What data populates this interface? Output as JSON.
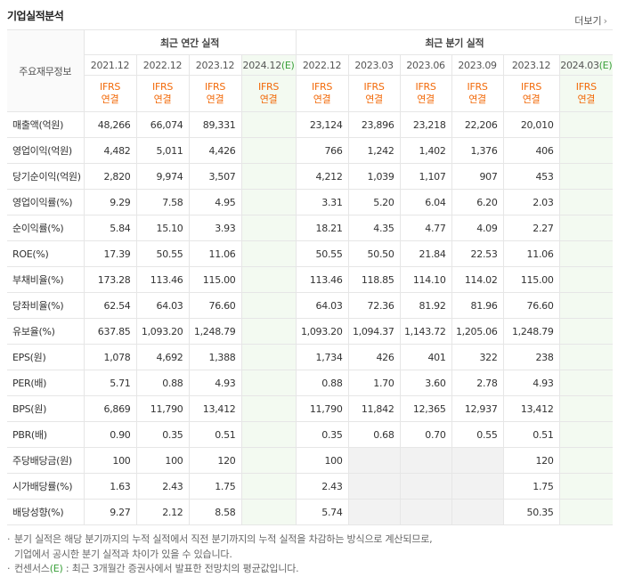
{
  "header": {
    "title": "기업실적분석",
    "more": "더보기"
  },
  "table": {
    "row_header": "주요재무정보",
    "column_groups": [
      {
        "title": "최근 연간 실적",
        "span": 4
      },
      {
        "title": "최근 분기 실적",
        "span": 6
      }
    ],
    "columns": [
      {
        "date": "2021.12",
        "standard": "IFRS",
        "scope": "연결"
      },
      {
        "date": "2022.12",
        "standard": "IFRS",
        "scope": "연결"
      },
      {
        "date": "2023.12",
        "standard": "IFRS",
        "scope": "연결"
      },
      {
        "date": "2024.12",
        "suffix": "(E)",
        "standard": "IFRS",
        "scope": "연결"
      },
      {
        "date": "2022.12",
        "standard": "IFRS",
        "scope": "연결"
      },
      {
        "date": "2023.03",
        "standard": "IFRS",
        "scope": "연결"
      },
      {
        "date": "2023.06",
        "standard": "IFRS",
        "scope": "연결"
      },
      {
        "date": "2023.09",
        "standard": "IFRS",
        "scope": "연결"
      },
      {
        "date": "2023.12",
        "standard": "IFRS",
        "scope": "연결"
      },
      {
        "date": "2024.03",
        "suffix": "(E)",
        "standard": "IFRS",
        "scope": "연결"
      }
    ],
    "groups": [
      {
        "rows": [
          {
            "label": "매출액(억원)",
            "values": [
              "48,266",
              "66,074",
              "89,331",
              null,
              "23,124",
              "23,896",
              "23,218",
              "22,206",
              "20,010",
              null
            ]
          },
          {
            "label": "영업이익(억원)",
            "values": [
              "4,482",
              "5,011",
              "4,426",
              null,
              "766",
              "1,242",
              "1,402",
              "1,376",
              "406",
              null
            ]
          },
          {
            "label": "당기순이익(억원)",
            "values": [
              "2,820",
              "9,974",
              "3,507",
              null,
              "4,212",
              "1,039",
              "1,107",
              "907",
              "453",
              null
            ]
          }
        ]
      },
      {
        "rows": [
          {
            "label": "영업이익률(%)",
            "values": [
              "9.29",
              "7.58",
              "4.95",
              null,
              "3.31",
              "5.20",
              "6.04",
              "6.20",
              "2.03",
              null
            ]
          },
          {
            "label": "순이익률(%)",
            "values": [
              "5.84",
              "15.10",
              "3.93",
              null,
              "18.21",
              "4.35",
              "4.77",
              "4.09",
              "2.27",
              null
            ]
          },
          {
            "label": "ROE(%)",
            "values": [
              "17.39",
              "50.55",
              "11.06",
              null,
              "50.55",
              "50.50",
              "21.84",
              "22.53",
              "11.06",
              null
            ]
          }
        ]
      },
      {
        "rows": [
          {
            "label": "부채비율(%)",
            "values": [
              "173.28",
              "113.46",
              "115.00",
              null,
              "113.46",
              "118.85",
              "114.10",
              "114.02",
              "115.00",
              null
            ]
          },
          {
            "label": "당좌비율(%)",
            "values": [
              "62.54",
              "64.03",
              "76.60",
              null,
              "64.03",
              "72.36",
              "81.92",
              "81.96",
              "76.60",
              null
            ]
          },
          {
            "label": "유보율(%)",
            "values": [
              "637.85",
              "1,093.20",
              "1,248.79",
              null,
              "1,093.20",
              "1,094.37",
              "1,143.72",
              "1,205.06",
              "1,248.79",
              null
            ]
          }
        ]
      },
      {
        "rows": [
          {
            "label": "EPS(원)",
            "values": [
              "1,078",
              "4,692",
              "1,388",
              null,
              "1,734",
              "426",
              "401",
              "322",
              "238",
              null
            ]
          },
          {
            "label": "PER(배)",
            "values": [
              "5.71",
              "0.88",
              "4.93",
              null,
              "0.88",
              "1.70",
              "3.60",
              "2.78",
              "4.93",
              null
            ]
          },
          {
            "label": "BPS(원)",
            "values": [
              "6,869",
              "11,790",
              "13,412",
              null,
              "11,790",
              "11,842",
              "12,365",
              "12,937",
              "13,412",
              null
            ]
          },
          {
            "label": "PBR(배)",
            "values": [
              "0.90",
              "0.35",
              "0.51",
              null,
              "0.35",
              "0.68",
              "0.70",
              "0.55",
              "0.51",
              null
            ]
          }
        ]
      },
      {
        "rows": [
          {
            "label": "주당배당금(원)",
            "values": [
              "100",
              "100",
              "120",
              null,
              "100",
              null,
              null,
              null,
              "120",
              null
            ]
          },
          {
            "label": "시가배당률(%)",
            "values": [
              "1.63",
              "2.43",
              "1.75",
              null,
              "2.43",
              null,
              null,
              null,
              "1.75",
              null
            ]
          },
          {
            "label": "배당성향(%)",
            "values": [
              "9.27",
              "2.12",
              "8.58",
              null,
              "5.74",
              null,
              null,
              null,
              "50.35",
              null
            ]
          }
        ]
      }
    ]
  },
  "notes": [
    {
      "lines": [
        "분기 실적은 해당 분기까지의 누적 실적에서 직전 분기까지의 누적 실적을 차감하는 방식으로 계산되므로,",
        "기업에서 공시한 분기 실적과 차이가 있을 수 있습니다."
      ]
    },
    {
      "prefix": "컨센서스",
      "mark": "(E)",
      "text": " : 최근 3개월간 증권사에서 발표한 전망치의 평균값입니다."
    }
  ]
}
